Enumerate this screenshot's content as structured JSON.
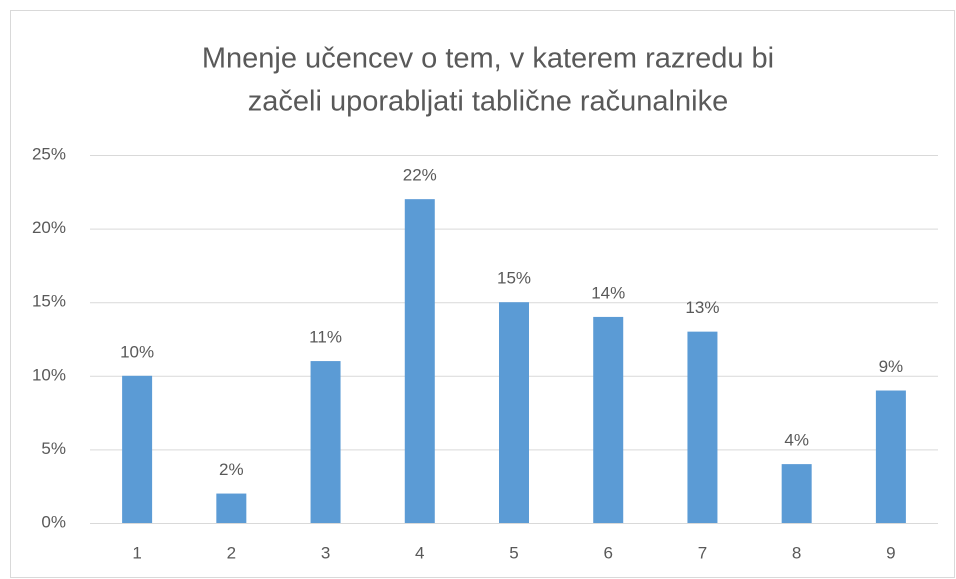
{
  "chart_data": {
    "type": "bar",
    "title": [
      "Mnenje učencev o tem, v katerem razredu bi",
      "začeli uporabljati tablične računalnike"
    ],
    "categories": [
      "1",
      "2",
      "3",
      "4",
      "5",
      "6",
      "7",
      "8",
      "9"
    ],
    "values": [
      10,
      2,
      11,
      22,
      15,
      14,
      13,
      4,
      9
    ],
    "value_labels": [
      "10%",
      "2%",
      "11%",
      "22%",
      "15%",
      "14%",
      "13%",
      "4%",
      "9%"
    ],
    "color": "#5b9bd5",
    "ylim": [
      0,
      25
    ],
    "yticks": [
      {
        "value": 0,
        "label": "0%"
      },
      {
        "value": 5,
        "label": "5%"
      },
      {
        "value": 10,
        "label": "10%"
      },
      {
        "value": 15,
        "label": "15%"
      },
      {
        "value": 20,
        "label": "20%"
      },
      {
        "value": 25,
        "label": "25%"
      }
    ],
    "grid": true
  }
}
